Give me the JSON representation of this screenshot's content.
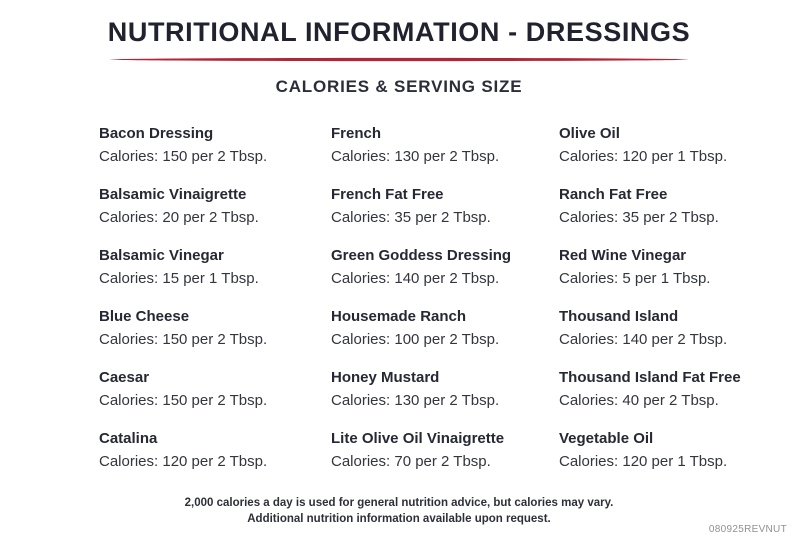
{
  "title": "NUTRITIONAL INFORMATION - DRESSINGS",
  "subtitle": "CALORIES & SERVING SIZE",
  "accent_color": "#b12536",
  "columns": [
    [
      {
        "name": "Bacon Dressing",
        "calories": "Calories: 150 per 2 Tbsp."
      },
      {
        "name": "Balsamic Vinaigrette",
        "calories": "Calories: 20 per 2 Tbsp."
      },
      {
        "name": "Balsamic Vinegar",
        "calories": "Calories: 15 per 1 Tbsp."
      },
      {
        "name": "Blue Cheese",
        "calories": "Calories: 150 per 2 Tbsp."
      },
      {
        "name": "Caesar",
        "calories": "Calories: 150 per 2 Tbsp."
      },
      {
        "name": "Catalina",
        "calories": "Calories: 120 per 2 Tbsp."
      }
    ],
    [
      {
        "name": "French",
        "calories": "Calories: 130 per 2 Tbsp."
      },
      {
        "name": "French Fat Free",
        "calories": "Calories: 35 per 2 Tbsp."
      },
      {
        "name": "Green Goddess Dressing",
        "calories": "Calories: 140 per 2 Tbsp."
      },
      {
        "name": "Housemade Ranch",
        "calories": "Calories: 100 per 2 Tbsp."
      },
      {
        "name": "Honey Mustard",
        "calories": "Calories: 130 per 2 Tbsp."
      },
      {
        "name": "Lite Olive Oil Vinaigrette",
        "calories": "Calories: 70 per 2 Tbsp."
      }
    ],
    [
      {
        "name": "Olive Oil",
        "calories": "Calories: 120 per 1 Tbsp."
      },
      {
        "name": "Ranch Fat Free",
        "calories": "Calories: 35 per 2 Tbsp."
      },
      {
        "name": "Red Wine Vinegar",
        "calories": "Calories: 5 per 1 Tbsp."
      },
      {
        "name": "Thousand Island",
        "calories": "Calories: 140 per 2 Tbsp."
      },
      {
        "name": "Thousand Island Fat Free",
        "calories": "Calories: 40 per 2 Tbsp."
      },
      {
        "name": "Vegetable Oil",
        "calories": "Calories: 120 per 1 Tbsp."
      }
    ]
  ],
  "footer": {
    "line1": "2,000 calories a day is used for general nutrition advice, but calories may vary.",
    "line2": "Additional nutrition information available upon request.",
    "code": "080925REVNUT"
  }
}
